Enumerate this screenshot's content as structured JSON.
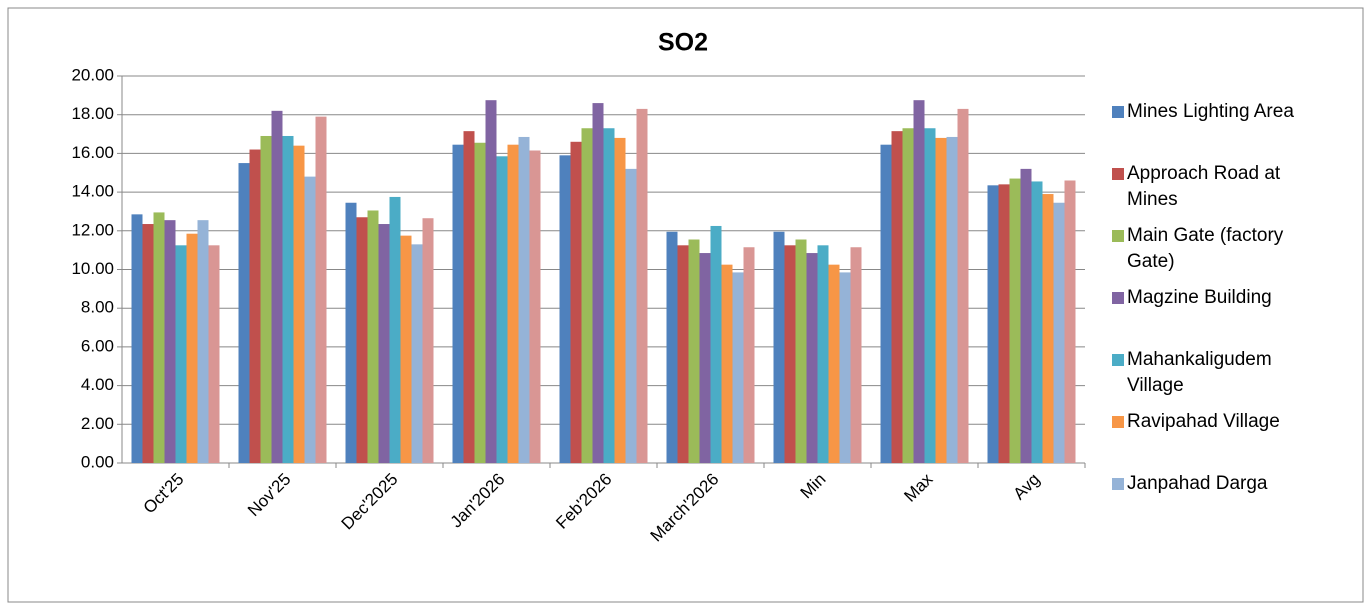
{
  "chart_data": {
    "type": "bar",
    "title": "SO2",
    "categories": [
      "Oct'25",
      "Nov'25",
      "Dec'2025",
      "Jan'2026",
      "Feb'2026",
      "March'2026",
      "Min",
      "Max",
      "Avg"
    ],
    "series": [
      {
        "name": "Mines Lighting Area",
        "color": "#4f81bd",
        "values": [
          12.85,
          15.5,
          13.45,
          16.45,
          15.9,
          11.95,
          11.95,
          16.45,
          14.35
        ]
      },
      {
        "name": "Approach Road at Mines",
        "color": "#c0504d",
        "values": [
          12.35,
          16.2,
          12.7,
          17.15,
          16.6,
          11.25,
          11.25,
          17.15,
          14.4
        ]
      },
      {
        "name": "Main Gate (factory Gate)",
        "color": "#9bbb59",
        "values": [
          12.95,
          16.9,
          13.05,
          16.55,
          17.3,
          11.55,
          11.55,
          17.3,
          14.7
        ]
      },
      {
        "name": "Magzine Building",
        "color": "#8064a2",
        "values": [
          12.55,
          18.2,
          12.35,
          18.75,
          18.6,
          10.85,
          10.85,
          18.75,
          15.2
        ]
      },
      {
        "name": "Mahankaligudem Village",
        "color": "#4bacc6",
        "values": [
          11.25,
          16.9,
          13.75,
          15.85,
          17.3,
          12.25,
          11.25,
          17.3,
          14.55
        ]
      },
      {
        "name": "Ravipahad Village",
        "color": "#f79646",
        "values": [
          11.85,
          16.4,
          11.75,
          16.45,
          16.8,
          10.25,
          10.25,
          16.8,
          13.9
        ]
      },
      {
        "name": "Janpahad Darga",
        "color": "#95b3d7",
        "values": [
          12.55,
          14.8,
          11.3,
          16.85,
          15.2,
          9.85,
          9.85,
          16.85,
          13.45
        ]
      },
      {
        "name": null,
        "color": "#d99694",
        "values": [
          11.25,
          17.9,
          12.65,
          16.15,
          18.3,
          11.15,
          11.15,
          18.3,
          14.6
        ]
      }
    ],
    "ylim": [
      0,
      20
    ],
    "yticks": [
      {
        "value": 0,
        "label": "0.00"
      },
      {
        "value": 2,
        "label": "2.00"
      },
      {
        "value": 4,
        "label": "4.00"
      },
      {
        "value": 6,
        "label": "6.00"
      },
      {
        "value": 8,
        "label": "8.00"
      },
      {
        "value": 10,
        "label": "10.00"
      },
      {
        "value": 12,
        "label": "12.00"
      },
      {
        "value": 14,
        "label": "14.00"
      },
      {
        "value": 16,
        "label": "16.00"
      },
      {
        "value": 18,
        "label": "18.00"
      },
      {
        "value": 20,
        "label": "20.00"
      }
    ],
    "grid": true,
    "legend": "right"
  }
}
